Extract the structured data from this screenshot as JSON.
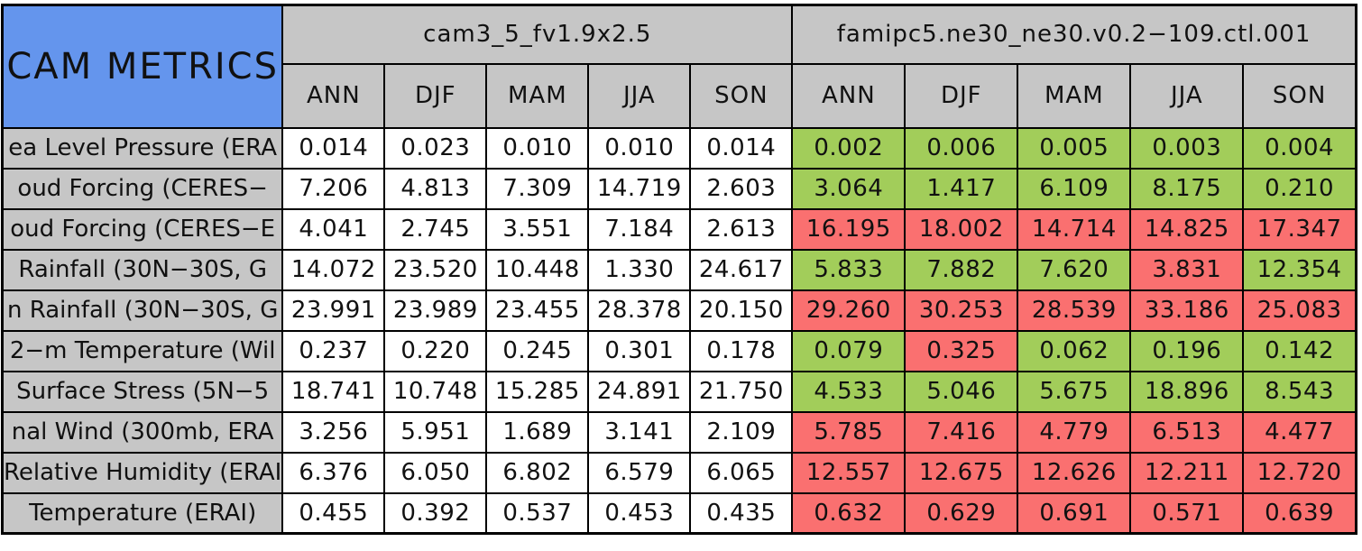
{
  "header": {
    "title": "CAM METRICS",
    "model1": "cam3_5_fv1.9x2.5",
    "model2": "famipc5.ne30_ne30.v0.2−109.ctl.001",
    "seasons": [
      "ANN",
      "DJF",
      "MAM",
      "JJA",
      "SON"
    ]
  },
  "colors": {
    "title_blue": "#6495ED",
    "header_gray": "#C6C6C6",
    "better_green": "#A2CD5A",
    "worse_red": "#FA7070",
    "baseline_white": "#FFFFFF",
    "border_black": "#000000"
  },
  "chart_data": {
    "type": "table",
    "title": "CAM METRICS",
    "column_groups": [
      "cam3_5_fv1.9x2.5",
      "famipc5.ne30_ne30.v0.2−109.ctl.001"
    ],
    "sub_columns": [
      "ANN",
      "DJF",
      "MAM",
      "JJA",
      "SON"
    ],
    "cell_color_meaning": {
      "better": "#A2CD5A",
      "worse": "#FA7070"
    },
    "rows": [
      {
        "label": "ea Level Pressure (ERA",
        "m1": [
          "0.014",
          "0.023",
          "0.010",
          "0.010",
          "0.014"
        ],
        "m2": [
          "0.002",
          "0.006",
          "0.005",
          "0.003",
          "0.004"
        ],
        "m2_status": [
          "better",
          "better",
          "better",
          "better",
          "better"
        ]
      },
      {
        "label": "oud Forcing (CERES−",
        "m1": [
          "7.206",
          "4.813",
          "7.309",
          "14.719",
          "2.603"
        ],
        "m2": [
          "3.064",
          "1.417",
          "6.109",
          "8.175",
          "0.210"
        ],
        "m2_status": [
          "better",
          "better",
          "better",
          "better",
          "better"
        ]
      },
      {
        "label": "oud Forcing (CERES−E",
        "m1": [
          "4.041",
          "2.745",
          "3.551",
          "7.184",
          "2.613"
        ],
        "m2": [
          "16.195",
          "18.002",
          "14.714",
          "14.825",
          "17.347"
        ],
        "m2_status": [
          "worse",
          "worse",
          "worse",
          "worse",
          "worse"
        ]
      },
      {
        "label": "Rainfall (30N−30S, G",
        "m1": [
          "14.072",
          "23.520",
          "10.448",
          "1.330",
          "24.617"
        ],
        "m2": [
          "5.833",
          "7.882",
          "7.620",
          "3.831",
          "12.354"
        ],
        "m2_status": [
          "better",
          "better",
          "better",
          "worse",
          "better"
        ]
      },
      {
        "label": "n Rainfall (30N−30S, G",
        "m1": [
          "23.991",
          "23.989",
          "23.455",
          "28.378",
          "20.150"
        ],
        "m2": [
          "29.260",
          "30.253",
          "28.539",
          "33.186",
          "25.083"
        ],
        "m2_status": [
          "worse",
          "worse",
          "worse",
          "worse",
          "worse"
        ]
      },
      {
        "label": "2−m Temperature (Wil",
        "m1": [
          "0.237",
          "0.220",
          "0.245",
          "0.301",
          "0.178"
        ],
        "m2": [
          "0.079",
          "0.325",
          "0.062",
          "0.196",
          "0.142"
        ],
        "m2_status": [
          "better",
          "worse",
          "better",
          "better",
          "better"
        ]
      },
      {
        "label": "Surface Stress (5N−5",
        "m1": [
          "18.741",
          "10.748",
          "15.285",
          "24.891",
          "21.750"
        ],
        "m2": [
          "4.533",
          "5.046",
          "5.675",
          "18.896",
          "8.543"
        ],
        "m2_status": [
          "better",
          "better",
          "better",
          "better",
          "better"
        ]
      },
      {
        "label": "nal Wind (300mb, ERA",
        "m1": [
          "3.256",
          "5.951",
          "1.689",
          "3.141",
          "2.109"
        ],
        "m2": [
          "5.785",
          "7.416",
          "4.779",
          "6.513",
          "4.477"
        ],
        "m2_status": [
          "worse",
          "worse",
          "worse",
          "worse",
          "worse"
        ]
      },
      {
        "label": "Relative Humidity (ERAI",
        "m1": [
          "6.376",
          "6.050",
          "6.802",
          "6.579",
          "6.065"
        ],
        "m2": [
          "12.557",
          "12.675",
          "12.626",
          "12.211",
          "12.720"
        ],
        "m2_status": [
          "worse",
          "worse",
          "worse",
          "worse",
          "worse"
        ]
      },
      {
        "label": "Temperature (ERAI)",
        "m1": [
          "0.455",
          "0.392",
          "0.537",
          "0.453",
          "0.435"
        ],
        "m2": [
          "0.632",
          "0.629",
          "0.691",
          "0.571",
          "0.639"
        ],
        "m2_status": [
          "worse",
          "worse",
          "worse",
          "worse",
          "worse"
        ]
      }
    ]
  }
}
